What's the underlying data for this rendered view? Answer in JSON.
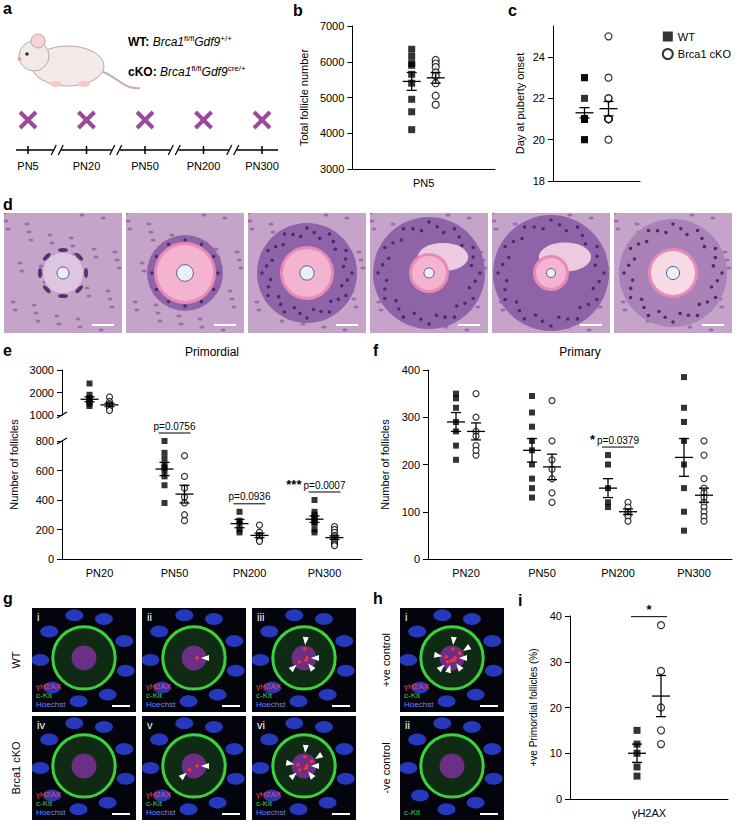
{
  "schematic": {
    "panel": "a",
    "genotypes": [
      {
        "label": "WT:",
        "parts": [
          {
            "text": "Brca1",
            "italic": true
          },
          {
            "text": "fl/fl",
            "sup": true
          },
          {
            "text": "Gdf9",
            "italic": true
          },
          {
            "text": "+/+",
            "sup": true
          }
        ]
      },
      {
        "label": "cKO:",
        "parts": [
          {
            "text": "Brca1",
            "italic": true
          },
          {
            "text": "fl/fl",
            "sup": true
          },
          {
            "text": "Gdf9",
            "italic": true
          },
          {
            "text": "cre/+",
            "sup": true
          }
        ]
      }
    ],
    "timepoints": [
      "PN5",
      "PN20",
      "PN50",
      "PN200",
      "PN300"
    ],
    "marker_color": "#9b4a9b"
  },
  "histology": {
    "panel": "d",
    "count": 6
  },
  "micrographs": {
    "panel": "g",
    "channels": [
      {
        "name": "γH2AX",
        "color": "#ff3b3b"
      },
      {
        "name": "c-Kit",
        "color": "#3bd23b"
      },
      {
        "name": "Hoechst",
        "color": "#6a86ff"
      }
    ],
    "rows": [
      {
        "label": "WT",
        "numerals": [
          "i",
          "ii",
          "iii"
        ]
      },
      {
        "label": "Brca1 cKO",
        "numerals": [
          "iv",
          "v",
          "vi"
        ]
      }
    ]
  },
  "controls": {
    "panel": "h",
    "images": [
      {
        "numeral": "i",
        "label": "+ve control",
        "channels": [
          "γH2AX",
          "c-Kit",
          "Hoechst"
        ]
      },
      {
        "numeral": "ii",
        "label": "-ve control",
        "channels": [
          "c-Kit"
        ]
      }
    ]
  },
  "chart_data": [
    {
      "panel": "b",
      "type": "scatter",
      "y_label": "Total follicle number",
      "categories": [
        "PN5"
      ],
      "ylim": [
        3000,
        7000
      ],
      "yticks": [
        3000,
        4000,
        5000,
        6000,
        7000
      ],
      "series": [
        {
          "name": "WT",
          "marker": "square",
          "color": "#000000",
          "values": [
            [
              6350,
              6150,
              5950,
              5900,
              5650,
              5400,
              4950,
              4600,
              4100
            ]
          ],
          "means": [
            5450
          ],
          "errors": [
            250
          ]
        },
        {
          "name": "Brca1 cKO",
          "marker": "circle-open",
          "color": "#000000",
          "values": [
            [
              6050,
              5950,
              5850,
              5700,
              5600,
              5400,
              5050,
              4800
            ]
          ],
          "means": [
            5550
          ],
          "errors": [
            150
          ]
        }
      ]
    },
    {
      "panel": "c",
      "type": "scatter",
      "y_label": "Day at puberty onset",
      "categories": [
        null
      ],
      "ylim": [
        18,
        25.5
      ],
      "yticks": [
        18,
        20,
        22,
        24
      ],
      "legend": "top-right",
      "series": [
        {
          "name": "WT",
          "marker": "square",
          "color": "#000000",
          "values": [
            [
              23,
              23,
              22,
              21,
              21,
              21,
              21,
              21,
              21,
              21,
              20,
              20
            ]
          ],
          "means": [
            21.3
          ],
          "errors": [
            0.25
          ]
        },
        {
          "name": "Brca1 cKO",
          "marker": "circle-open",
          "color": "#000000",
          "values": [
            [
              25,
              23,
              22,
              22,
              21,
              21,
              21,
              21,
              21,
              21,
              21,
              21,
              20
            ]
          ],
          "means": [
            21.5
          ],
          "errors": [
            0.35
          ]
        }
      ]
    },
    {
      "panel": "e",
      "type": "scatter",
      "title": "Primordial",
      "y_label": "Number of follicles",
      "categories": [
        "PN20",
        "PN50",
        "PN200",
        "PN300"
      ],
      "ylim": [
        0,
        3000
      ],
      "y_break": [
        800,
        1000
      ],
      "yticks": [
        0,
        200,
        400,
        600,
        800,
        1000,
        2000,
        3000
      ],
      "series": [
        {
          "name": "WT",
          "marker": "square",
          "color": "#000000",
          "values": [
            [
              2400,
              1900,
              1750,
              1700,
              1600,
              1500,
              1400
            ],
            [
              800,
              720,
              680,
              640,
              620,
              600,
              560,
              500,
              380
            ],
            [
              320,
              260,
              240,
              200,
              180
            ],
            [
              400,
              320,
              300,
              280,
              270,
              250,
              240,
              200,
              180
            ]
          ],
          "means": [
            1700,
            610,
            240,
            270
          ],
          "errors": [
            110,
            45,
            28,
            22
          ]
        },
        {
          "name": "Brca1 cKO",
          "marker": "circle-open",
          "color": "#000000",
          "values": [
            [
              1800,
              1600,
              1500,
              1450,
              1400,
              1300,
              1200
            ],
            [
              700,
              560,
              480,
              420,
              380,
              300,
              260
            ],
            [
              230,
              180,
              160,
              150,
              130,
              120
            ],
            [
              220,
              200,
              180,
              160,
              150,
              140,
              130,
              120,
              110,
              100,
              90
            ]
          ],
          "means": [
            1450,
            440,
            160,
            145
          ],
          "errors": [
            75,
            60,
            15,
            12
          ]
        }
      ],
      "annotations": [
        {
          "category": "PN50",
          "text": "p=0.0756"
        },
        {
          "category": "PN200",
          "text": "p=0.0936"
        },
        {
          "category": "PN300",
          "text": "p=0.0007",
          "stars": "***"
        }
      ]
    },
    {
      "panel": "f",
      "type": "scatter",
      "title": "Primary",
      "y_label": "Number of follicles",
      "categories": [
        "PN20",
        "PN50",
        "PN200",
        "PN300"
      ],
      "ylim": [
        0,
        400
      ],
      "yticks": [
        0,
        100,
        200,
        300,
        400
      ],
      "series": [
        {
          "name": "WT",
          "marker": "square",
          "color": "#000000",
          "values": [
            [
              350,
              340,
              320,
              290,
              270,
              240,
              210
            ],
            [
              345,
              310,
              280,
              250,
              230,
              200,
              170,
              150,
              130
            ],
            [
              220,
              200,
              150,
              120,
              110
            ],
            [
              385,
              320,
              290,
              250,
              200,
              150,
              100,
              60
            ]
          ],
          "means": [
            290,
            230,
            150,
            215
          ],
          "errors": [
            20,
            25,
            20,
            40
          ]
        },
        {
          "name": "Brca1 cKO",
          "marker": "circle-open",
          "color": "#000000",
          "values": [
            [
              350,
              300,
              270,
              260,
              240,
              220,
              230
            ],
            [
              335,
              250,
              210,
              190,
              170,
              140,
              120
            ],
            [
              120,
              110,
              100,
              95,
              90,
              80
            ],
            [
              250,
              220,
              170,
              150,
              140,
              130,
              120,
              110,
              100,
              90,
              80
            ]
          ],
          "means": [
            270,
            195,
            100,
            135
          ],
          "errors": [
            18,
            27,
            6,
            15
          ]
        }
      ],
      "annotations": [
        {
          "category": "PN200",
          "text": "p=0.0379",
          "stars": "*"
        }
      ]
    },
    {
      "panel": "i",
      "type": "scatter",
      "y_label": "+ve Primordial follicles (%)",
      "categories": [
        "γH2AX"
      ],
      "ylim": [
        0,
        40
      ],
      "yticks": [
        0,
        10,
        20,
        30,
        40
      ],
      "series": [
        {
          "name": "WT",
          "marker": "square",
          "color": "#000000",
          "values": [
            [
              15,
              12,
              10,
              7,
              5
            ]
          ],
          "means": [
            10
          ],
          "errors": [
            2
          ]
        },
        {
          "name": "Brca1 cKO",
          "marker": "circle-open",
          "color": "#000000",
          "values": [
            [
              38,
              28,
              20,
              15,
              12
            ]
          ],
          "means": [
            22.5
          ],
          "errors": [
            4.5
          ]
        }
      ],
      "annotations": [
        {
          "category": "γH2AX",
          "stars": "*"
        }
      ]
    }
  ]
}
